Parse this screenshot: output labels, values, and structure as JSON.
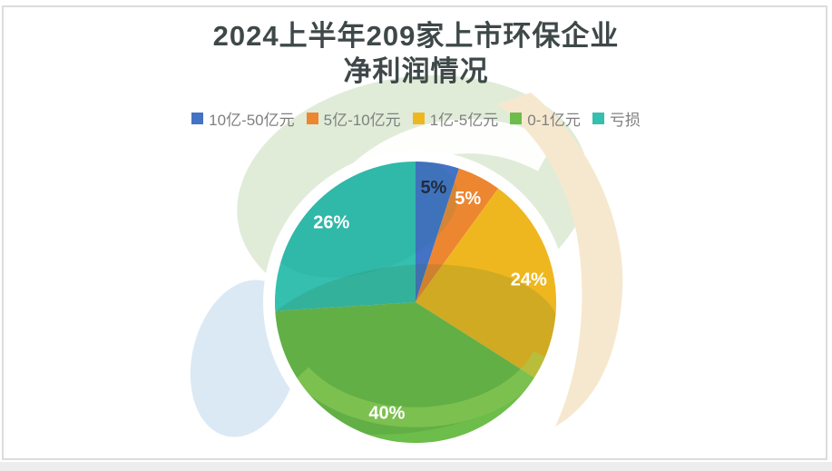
{
  "page": {
    "card_background": "#ffffff",
    "frame_border_color": "#dcdcdc",
    "bottom_strip_color": "#ededed"
  },
  "chart_data": {
    "type": "pie",
    "title": "2024上半年209家上市环保企业净利润情况",
    "title_lines": [
      "2024上半年209家上市环保企业",
      "净利润情况"
    ],
    "title_color": "#3f4848",
    "categories": [
      "10亿-50亿元",
      "5亿-10亿元",
      "1亿-5亿元",
      "0-1亿元",
      "亏损"
    ],
    "values": [
      5,
      5,
      24,
      40,
      26
    ],
    "total": 100,
    "unit": "%",
    "slice_labels": [
      "5%",
      "5%",
      "24%",
      "40%",
      "26%"
    ],
    "colors": [
      "#4472c4",
      "#ed8630",
      "#efb71f",
      "#6cbd4a",
      "#35bfaf"
    ],
    "slice_label_colors": [
      "#232a3e",
      "#ffffff",
      "#ffffff",
      "#ffffff",
      "#ffffff"
    ],
    "legend_position": "top",
    "legend_text_color": "#7f7f7f",
    "start_angle": "12 o'clock, clockwise",
    "grid": "off"
  },
  "background_accents": {
    "pale_green": "#e0ecd8",
    "pale_beige": "#f6e8ce",
    "pale_blue": "#dbe9f4"
  }
}
